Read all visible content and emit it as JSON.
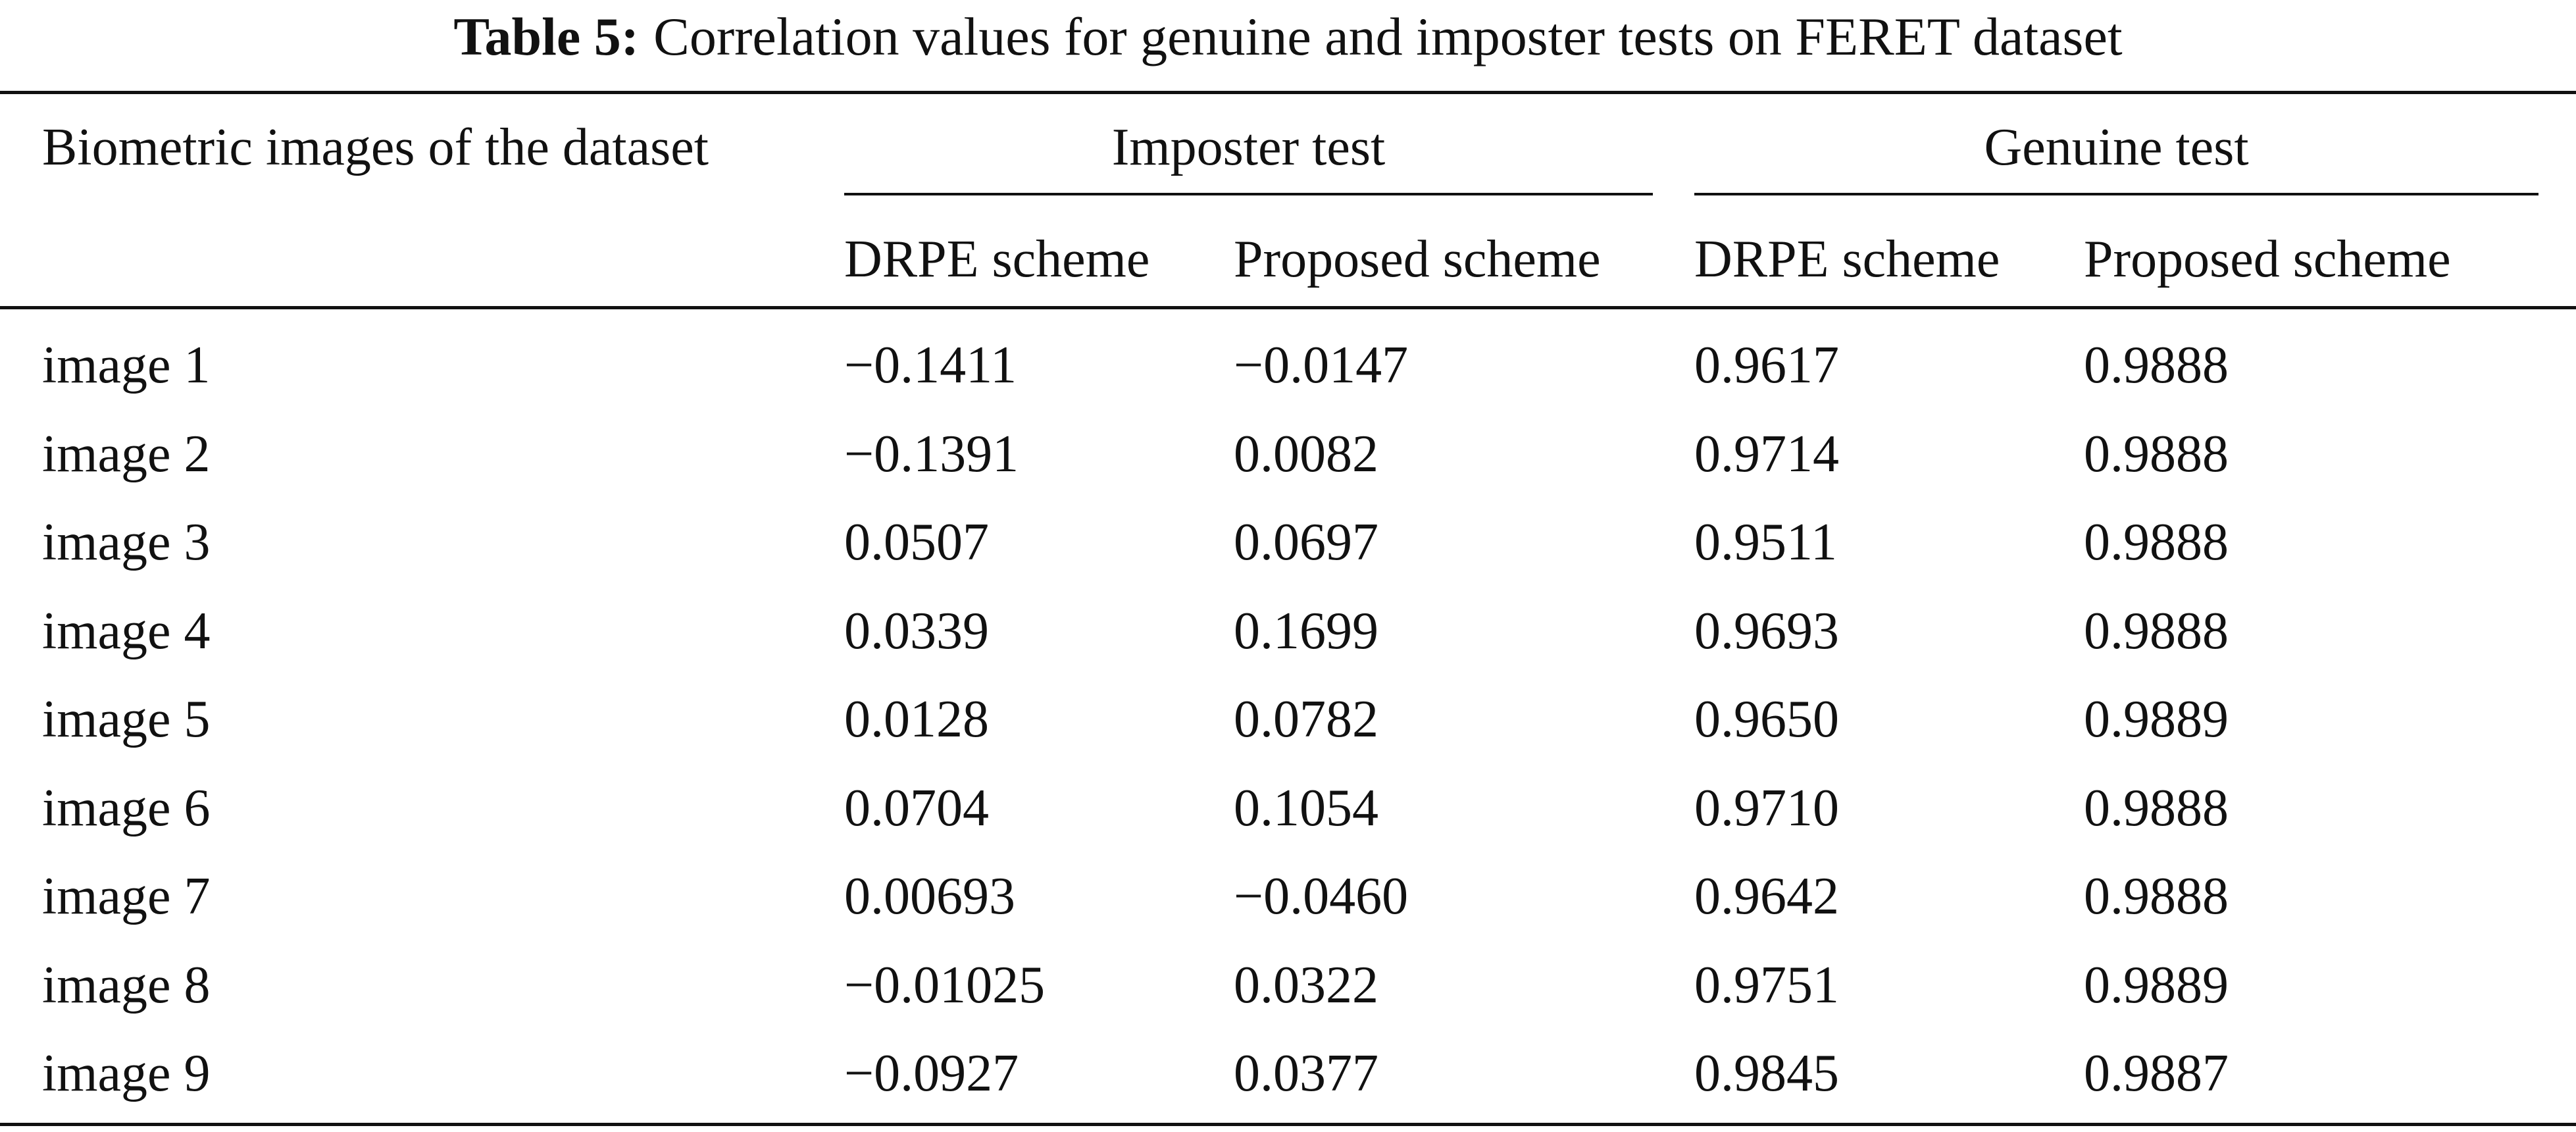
{
  "caption": {
    "label": "Table 5:",
    "text": "Correlation values for genuine and imposter tests on FERET dataset"
  },
  "header": {
    "row_label": "Biometric images of the dataset",
    "groups": [
      "Imposter test",
      "Genuine test"
    ],
    "subcolumns": [
      "DRPE scheme",
      "Proposed scheme",
      "DRPE scheme",
      "Proposed scheme"
    ]
  },
  "rows": [
    {
      "name": "image 1",
      "imp_drpe": "−0.1411",
      "imp_prop": "−0.0147",
      "gen_drpe": "0.9617",
      "gen_prop": "0.9888"
    },
    {
      "name": "image 2",
      "imp_drpe": "−0.1391",
      "imp_prop": "0.0082",
      "gen_drpe": "0.9714",
      "gen_prop": "0.9888"
    },
    {
      "name": "image 3",
      "imp_drpe": "0.0507",
      "imp_prop": "0.0697",
      "gen_drpe": "0.9511",
      "gen_prop": "0.9888"
    },
    {
      "name": "image 4",
      "imp_drpe": "0.0339",
      "imp_prop": "0.1699",
      "gen_drpe": "0.9693",
      "gen_prop": "0.9888"
    },
    {
      "name": "image 5",
      "imp_drpe": "0.0128",
      "imp_prop": "0.0782",
      "gen_drpe": "0.9650",
      "gen_prop": "0.9889"
    },
    {
      "name": "image 6",
      "imp_drpe": "0.0704",
      "imp_prop": "0.1054",
      "gen_drpe": "0.9710",
      "gen_prop": "0.9888"
    },
    {
      "name": "image 7",
      "imp_drpe": "0.00693",
      "imp_prop": "−0.0460",
      "gen_drpe": "0.9642",
      "gen_prop": "0.9888"
    },
    {
      "name": "image 8",
      "imp_drpe": "−0.01025",
      "imp_prop": "0.0322",
      "gen_drpe": "0.9751",
      "gen_prop": "0.9889"
    },
    {
      "name": "image 9",
      "imp_drpe": "−0.0927",
      "imp_prop": "0.0377",
      "gen_drpe": "0.9845",
      "gen_prop": "0.9887"
    }
  ]
}
